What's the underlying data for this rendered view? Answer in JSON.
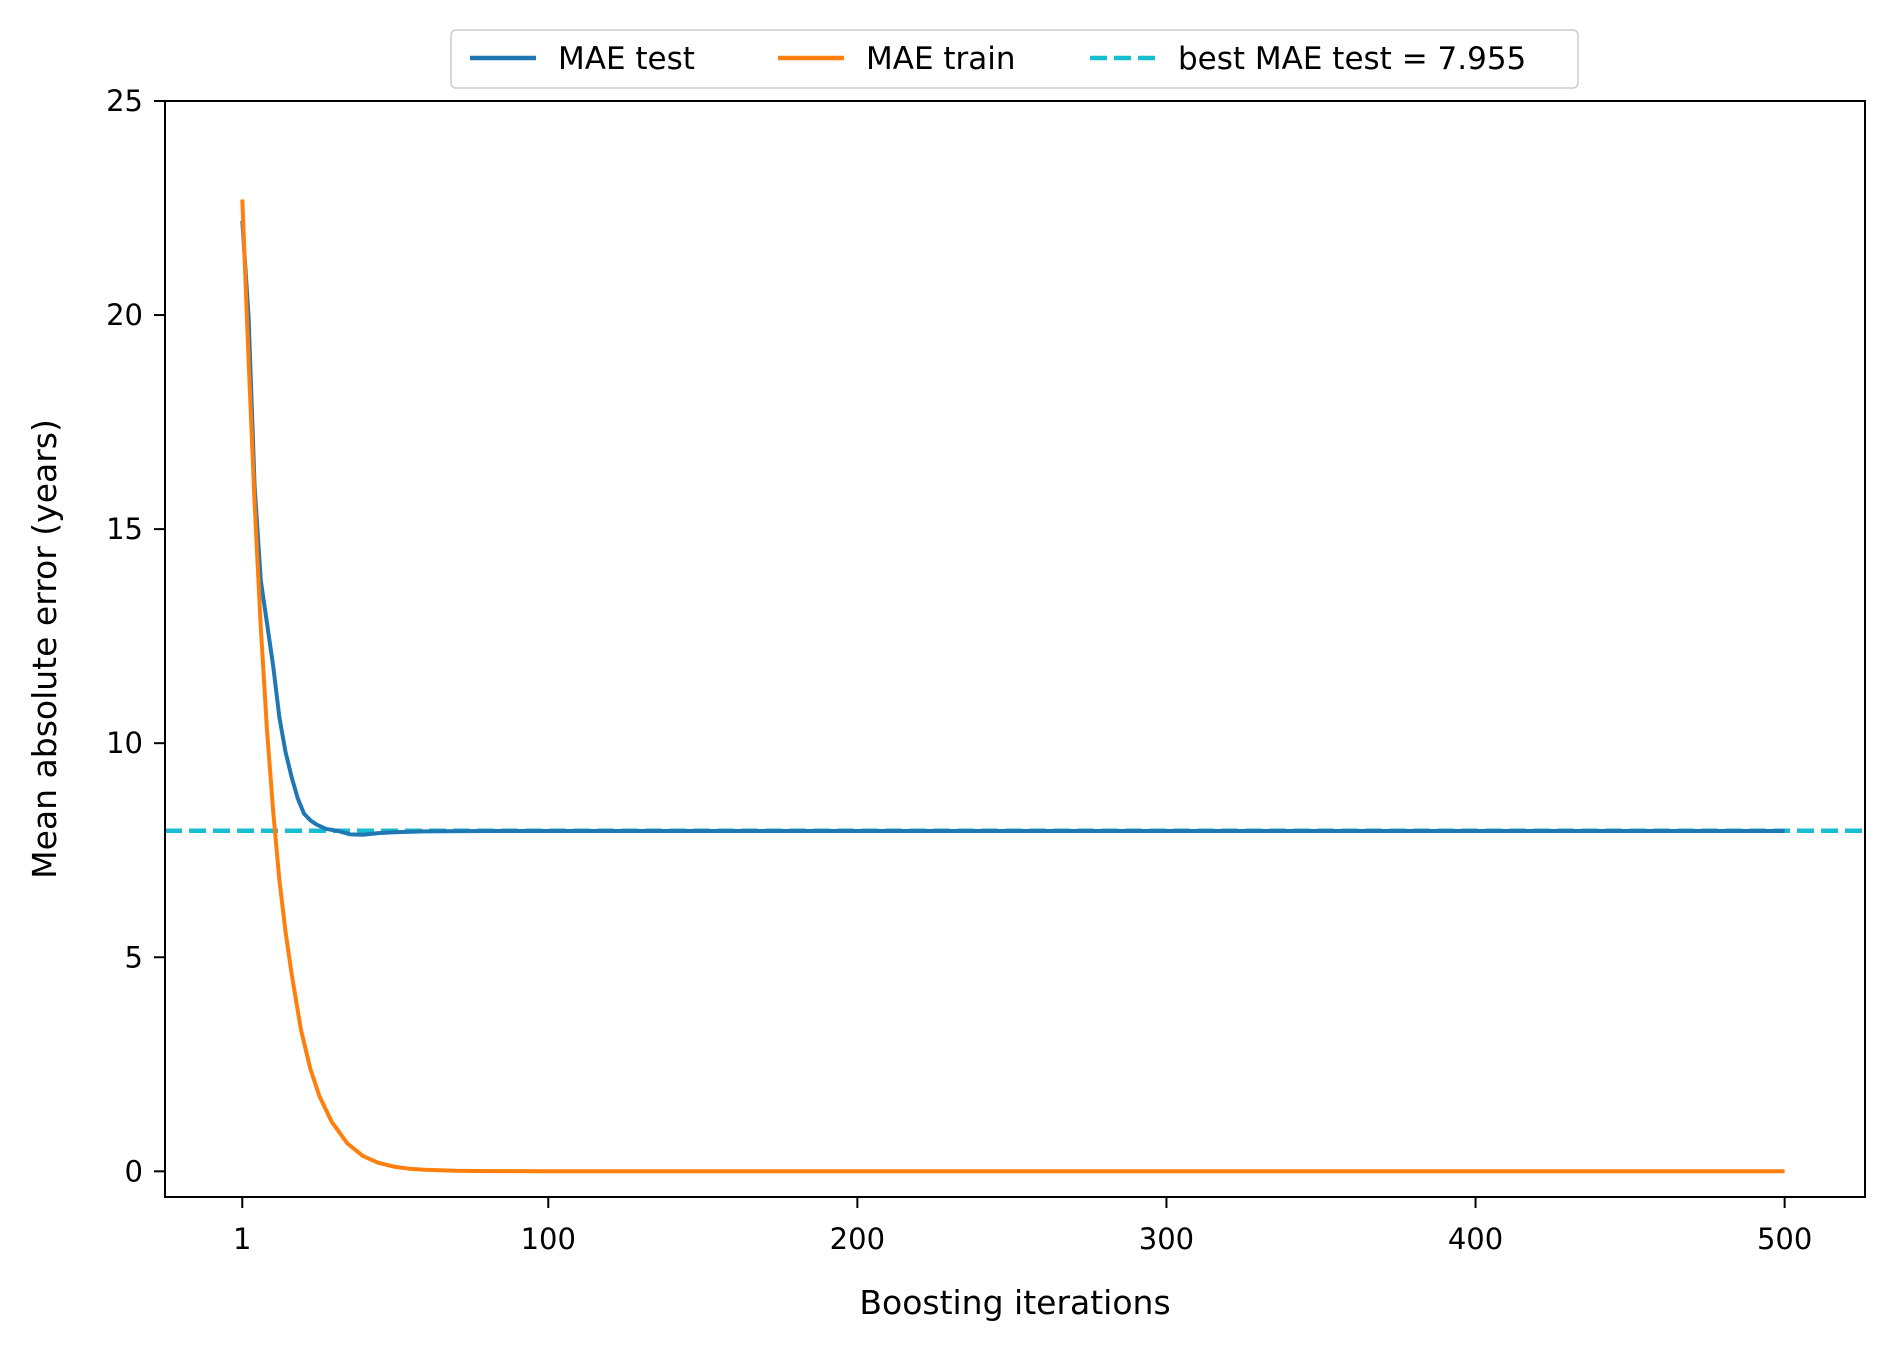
{
  "chart_data": {
    "type": "line",
    "title": "",
    "xlabel": "Boosting iterations",
    "ylabel": "Mean absolute error (years)",
    "xlim": [
      -24,
      526
    ],
    "ylim": [
      -0.6,
      25
    ],
    "x_ticks": [
      1,
      100,
      200,
      300,
      400,
      500
    ],
    "x_tick_labels": [
      "1",
      "100",
      "200",
      "300",
      "400",
      "500"
    ],
    "y_ticks": [
      0,
      5,
      10,
      15,
      20,
      25
    ],
    "y_tick_labels": [
      "0",
      "5",
      "10",
      "15",
      "20",
      "25"
    ],
    "grid": false,
    "legend_position": "top-center, above plot",
    "series": [
      {
        "name": "MAE test",
        "color": "#1f77b4",
        "style": "solid",
        "x": [
          1,
          3,
          5,
          7,
          9,
          11,
          13,
          15,
          17,
          19,
          21,
          23,
          25,
          28,
          32,
          36,
          40,
          45,
          50,
          60,
          80,
          100,
          150,
          200,
          250,
          300,
          350,
          400,
          450,
          500
        ],
        "y": [
          22.2,
          20.0,
          16.0,
          13.8,
          12.8,
          11.8,
          10.6,
          9.8,
          9.2,
          8.7,
          8.35,
          8.2,
          8.1,
          8.0,
          7.95,
          7.87,
          7.86,
          7.9,
          7.92,
          7.94,
          7.95,
          7.95,
          7.95,
          7.95,
          7.95,
          7.95,
          7.95,
          7.95,
          7.95,
          7.95
        ]
      },
      {
        "name": "MAE train",
        "color": "#ff7f0e",
        "style": "solid",
        "x": [
          1,
          3,
          5,
          7,
          9,
          11,
          13,
          15,
          17,
          20,
          23,
          26,
          30,
          35,
          40,
          45,
          50,
          55,
          60,
          70,
          80,
          100,
          150,
          200,
          300,
          400,
          500
        ],
        "y": [
          22.7,
          19.0,
          15.6,
          12.7,
          10.3,
          8.4,
          6.8,
          5.6,
          4.6,
          3.3,
          2.4,
          1.75,
          1.15,
          0.65,
          0.36,
          0.2,
          0.11,
          0.06,
          0.035,
          0.012,
          0.005,
          0.001,
          0,
          0,
          0,
          0,
          0
        ]
      }
    ],
    "hlines": [
      {
        "name": "best MAE test = 7.955",
        "y": 7.955,
        "color": "#17becf",
        "style": "dashed"
      }
    ]
  }
}
